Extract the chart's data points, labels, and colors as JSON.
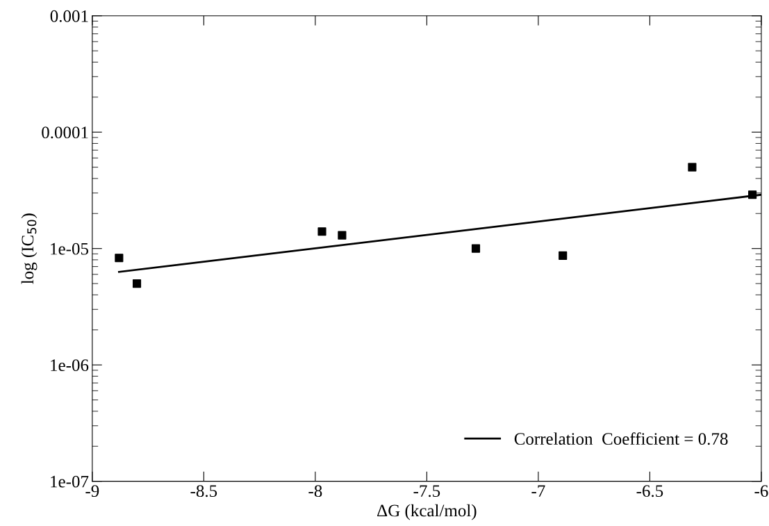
{
  "chart_data": {
    "type": "scatter",
    "xlabel": "ΔG (kcal/mol)",
    "ylabel": "log (IC$_{50}$)",
    "log": "y",
    "xlim": [
      -9,
      -6
    ],
    "xticks": [
      -9,
      -8.5,
      -8,
      -7.5,
      -7,
      -6.5,
      -6
    ],
    "ylim": [
      1e-07,
      0.001
    ],
    "yticks": [
      {
        "value": 1e-07,
        "label": "1e-07"
      },
      {
        "value": 1e-06,
        "label": "1e-06"
      },
      {
        "value": 1e-05,
        "label": "1e-05"
      },
      {
        "value": 0.0001,
        "label": "0.0001"
      },
      {
        "value": 0.001,
        "label": "0.001"
      }
    ],
    "grid": false,
    "legend": "bottom right",
    "series": [
      {
        "marker": "square",
        "color": "#000000",
        "x": [
          -8.88,
          -8.8,
          -7.97,
          -7.88,
          -7.28,
          -6.89,
          -6.31,
          -6.04
        ],
        "values": [
          8.3e-06,
          5e-06,
          1.4e-05,
          1.3e-05,
          1e-05,
          8.7e-06,
          5e-05,
          2.9e-05
        ]
      },
      {
        "type": "line",
        "name": "Correlation  Coefficient = 0.78",
        "color": "#000000",
        "line_style": "solid",
        "marker": "none",
        "x": [
          -8.88,
          -6.0
        ],
        "values": [
          6.3e-06,
          2.9e-05
        ]
      }
    ]
  }
}
